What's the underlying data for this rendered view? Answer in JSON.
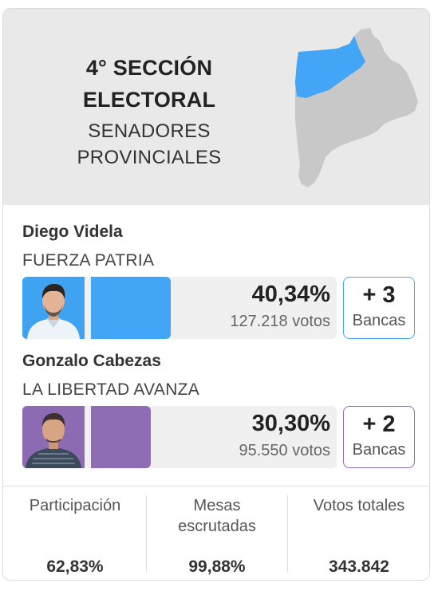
{
  "header": {
    "title_line1": "4° SECCIÓN",
    "title_line2": "ELECTORAL",
    "subtitle_line1": "SENADORES",
    "subtitle_line2": "PROVINCIALES"
  },
  "colors": {
    "fuerza_patria": "#42a5f5",
    "libertad_avanza": "#8e6db5",
    "map_gray": "#c8c8c8"
  },
  "candidates": [
    {
      "name": "Diego Videla",
      "party": "FUERZA PATRIA",
      "percent": "40,34%",
      "votes": "127.218 votos",
      "bancas_count": "+ 3",
      "bancas_label": "Bancas",
      "share": 0.4034
    },
    {
      "name": "Gonzalo Cabezas",
      "party": "LA LIBERTAD AVANZA",
      "percent": "30,30%",
      "votes": "95.550 votos",
      "bancas_count": "+ 2",
      "bancas_label": "Bancas",
      "share": 0.303
    }
  ],
  "stats": [
    {
      "label": "Participación",
      "value": "62,83%"
    },
    {
      "label": "Mesas escrutadas",
      "value": "99,88%"
    },
    {
      "label": "Votos totales",
      "value": "343.842"
    }
  ]
}
